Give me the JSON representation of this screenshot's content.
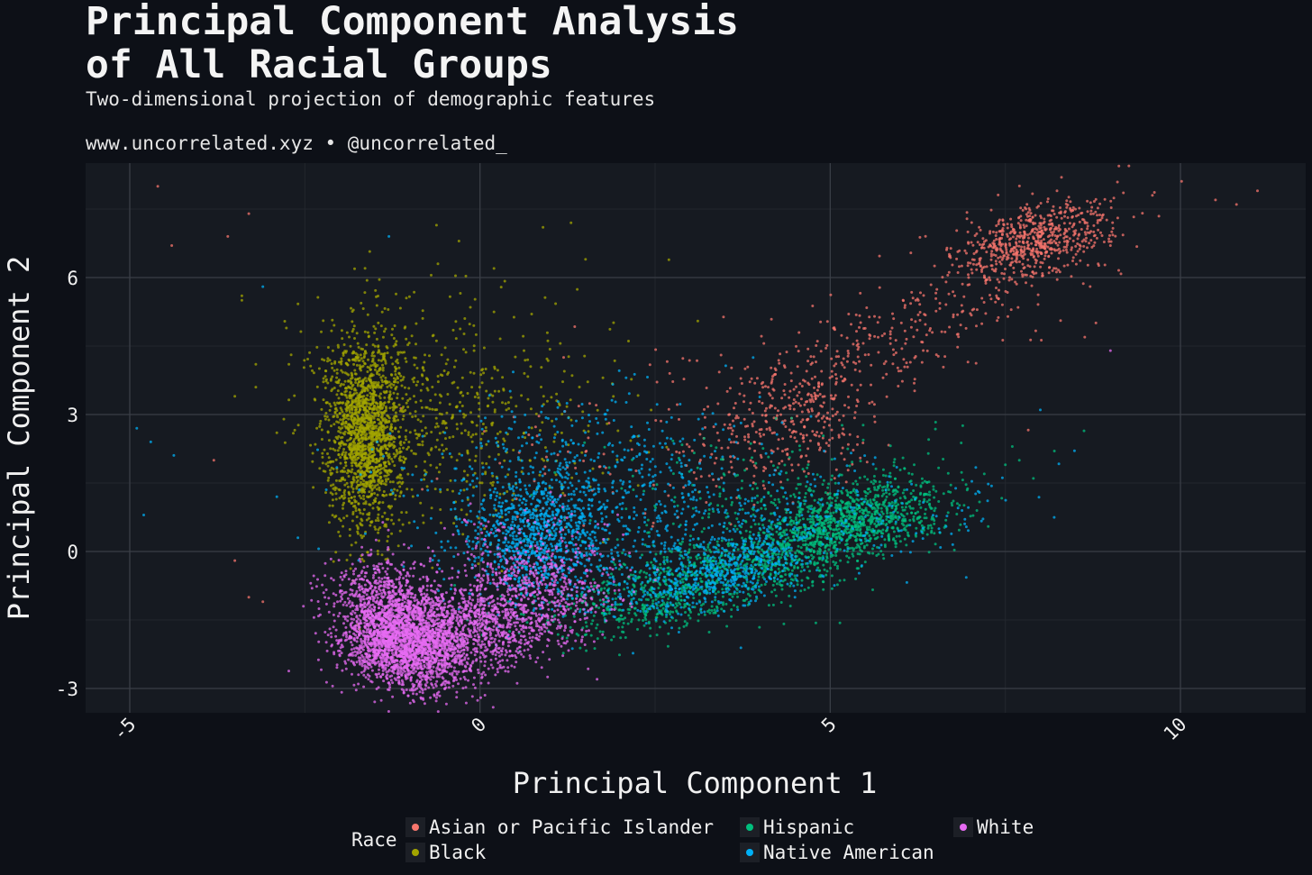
{
  "header": {
    "title_line1": "Principal Component Analysis",
    "title_line2": "of All Racial Groups",
    "subtitle": "Two-dimensional projection of demographic features",
    "caption": "www.uncorrelated.xyz • @uncorrelated_"
  },
  "colors": {
    "background": "#0d1017",
    "panel": "#161a21",
    "grid_major": "#3a3e46",
    "grid_minor": "#22262d"
  },
  "legend": {
    "title": "Race",
    "position": "bottom",
    "items": [
      {
        "label": "Asian or Pacific Islander",
        "color": "#f8766d"
      },
      {
        "label": "Black",
        "color": "#a3a500"
      },
      {
        "label": "Hispanic",
        "color": "#00bf7d"
      },
      {
        "label": "Native American",
        "color": "#00b0f6"
      },
      {
        "label": "White",
        "color": "#e76bf3"
      }
    ]
  },
  "chart_data": {
    "type": "scatter",
    "title": "Principal Component Analysis of All Racial Groups",
    "subtitle": "Two-dimensional projection of demographic features",
    "xlabel": "Principal Component 1",
    "ylabel": "Principal Component 2",
    "xlim": [
      -6.2,
      11.9
    ],
    "ylim": [
      -3.55,
      8.5
    ],
    "x_ticks": [
      -5,
      0,
      5,
      10
    ],
    "y_ticks": [
      -3,
      0,
      3,
      6
    ],
    "x_tick_labels": [
      "-5",
      "0",
      "5",
      "10"
    ],
    "y_tick_labels": [
      "-3",
      "0",
      "3",
      "6"
    ],
    "grid": true,
    "legend_position": "bottom",
    "series": [
      {
        "name": "Asian or Pacific Islander",
        "color": "#f8766d",
        "clusters": [
          {
            "cx": 7.9,
            "cy": 6.8,
            "sx": 0.55,
            "sy": 0.45,
            "n": 650,
            "rho": 0.5
          },
          {
            "cx": 4.5,
            "cy": 2.9,
            "sx": 0.55,
            "sy": 0.7,
            "n": 300,
            "rho": 0.3
          },
          {
            "cx": 6.0,
            "cy": 4.8,
            "sx": 1.3,
            "sy": 1.1,
            "n": 320,
            "rho": 0.8
          },
          {
            "cx": 2.5,
            "cy": 2.5,
            "sx": 1.6,
            "sy": 1.2,
            "n": 120,
            "rho": 0.3
          }
        ],
        "points": [
          [
            -4.6,
            8.0
          ],
          [
            -4.4,
            6.7
          ],
          [
            -3.6,
            6.9
          ],
          [
            -3.3,
            7.4
          ],
          [
            -3.8,
            2.0
          ],
          [
            -3.5,
            -0.2
          ],
          [
            -3.3,
            -1.0
          ],
          [
            -3.1,
            -1.1
          ],
          [
            10.5,
            7.7
          ],
          [
            10.8,
            7.6
          ],
          [
            11.1,
            7.9
          ],
          [
            9.6,
            7.8
          ],
          [
            9.0,
            6.7
          ]
        ]
      },
      {
        "name": "Black",
        "color": "#a3a500",
        "clusters": [
          {
            "cx": -1.65,
            "cy": 2.6,
            "sx": 0.25,
            "sy": 1.05,
            "n": 1600,
            "rho": 0.0
          },
          {
            "cx": -0.9,
            "cy": 3.0,
            "sx": 0.8,
            "sy": 1.1,
            "n": 450,
            "rho": -0.2
          },
          {
            "cx": 0.3,
            "cy": 3.0,
            "sx": 1.0,
            "sy": 1.4,
            "n": 220,
            "rho": 0.0
          }
        ],
        "points": [
          [
            -3.4,
            5.5
          ],
          [
            -3.5,
            3.4
          ],
          [
            -3.2,
            4.1
          ],
          [
            -3.2,
            3.6
          ],
          [
            -3.4,
            5.6
          ],
          [
            -2.9,
            2.6
          ],
          [
            -2.8,
            2.9
          ],
          [
            -0.3,
            6.8
          ],
          [
            0.2,
            6.2
          ],
          [
            0.9,
            7.1
          ],
          [
            1.3,
            7.2
          ],
          [
            -0.6,
            6.3
          ]
        ]
      },
      {
        "name": "Hispanic",
        "color": "#00bf7d",
        "clusters": [
          {
            "cx": 5.3,
            "cy": 0.7,
            "sx": 0.7,
            "sy": 0.45,
            "n": 1000,
            "rho": 0.45
          },
          {
            "cx": 3.6,
            "cy": -0.4,
            "sx": 1.1,
            "sy": 0.55,
            "n": 750,
            "rho": 0.6
          },
          {
            "cx": 2.4,
            "cy": -1.1,
            "sx": 0.9,
            "sy": 0.45,
            "n": 300,
            "rho": 0.5
          },
          {
            "cx": 4.0,
            "cy": 1.3,
            "sx": 1.5,
            "sy": 0.8,
            "n": 200,
            "rho": 0.3
          }
        ],
        "points": [
          [
            7.2,
            1.7
          ],
          [
            7.5,
            1.9
          ],
          [
            7.6,
            2.3
          ],
          [
            7.7,
            2.0
          ],
          [
            8.2,
            2.2
          ],
          [
            7.9,
            1.6
          ]
        ]
      },
      {
        "name": "Native American",
        "color": "#00b0f6",
        "clusters": [
          {
            "cx": 0.8,
            "cy": 0.3,
            "sx": 0.5,
            "sy": 0.7,
            "n": 900,
            "rho": 0.0
          },
          {
            "cx": 3.3,
            "cy": -0.5,
            "sx": 0.7,
            "sy": 0.45,
            "n": 600,
            "rho": 0.5
          },
          {
            "cx": 1.6,
            "cy": 1.4,
            "sx": 1.4,
            "sy": 1.0,
            "n": 650,
            "rho": 0.1
          },
          {
            "cx": 4.5,
            "cy": 0.6,
            "sx": 1.4,
            "sy": 0.6,
            "n": 300,
            "rho": 0.3
          }
        ],
        "points": [
          [
            -4.9,
            2.7
          ],
          [
            -4.7,
            2.4
          ],
          [
            -4.8,
            0.8
          ],
          [
            -3.1,
            5.8
          ],
          [
            -2.9,
            1.2
          ],
          [
            -2.6,
            0.3
          ],
          [
            -1.3,
            6.9
          ],
          [
            8.0,
            3.1
          ]
        ]
      },
      {
        "name": "White",
        "color": "#e76bf3",
        "clusters": [
          {
            "cx": -1.1,
            "cy": -1.9,
            "sx": 0.45,
            "sy": 0.55,
            "n": 2200,
            "rho": -0.2
          },
          {
            "cx": 0.0,
            "cy": -1.6,
            "sx": 0.7,
            "sy": 0.6,
            "n": 1100,
            "rho": 0.3
          },
          {
            "cx": 0.8,
            "cy": -0.6,
            "sx": 0.6,
            "sy": 0.7,
            "n": 450,
            "rho": 0.0
          },
          {
            "cx": -1.4,
            "cy": -0.9,
            "sx": 0.35,
            "sy": 0.5,
            "n": 300,
            "rho": 0.0
          }
        ],
        "points": [
          [
            9.0,
            4.4
          ],
          [
            -0.9,
            -3.0
          ],
          [
            -0.5,
            -3.0
          ]
        ]
      }
    ]
  }
}
